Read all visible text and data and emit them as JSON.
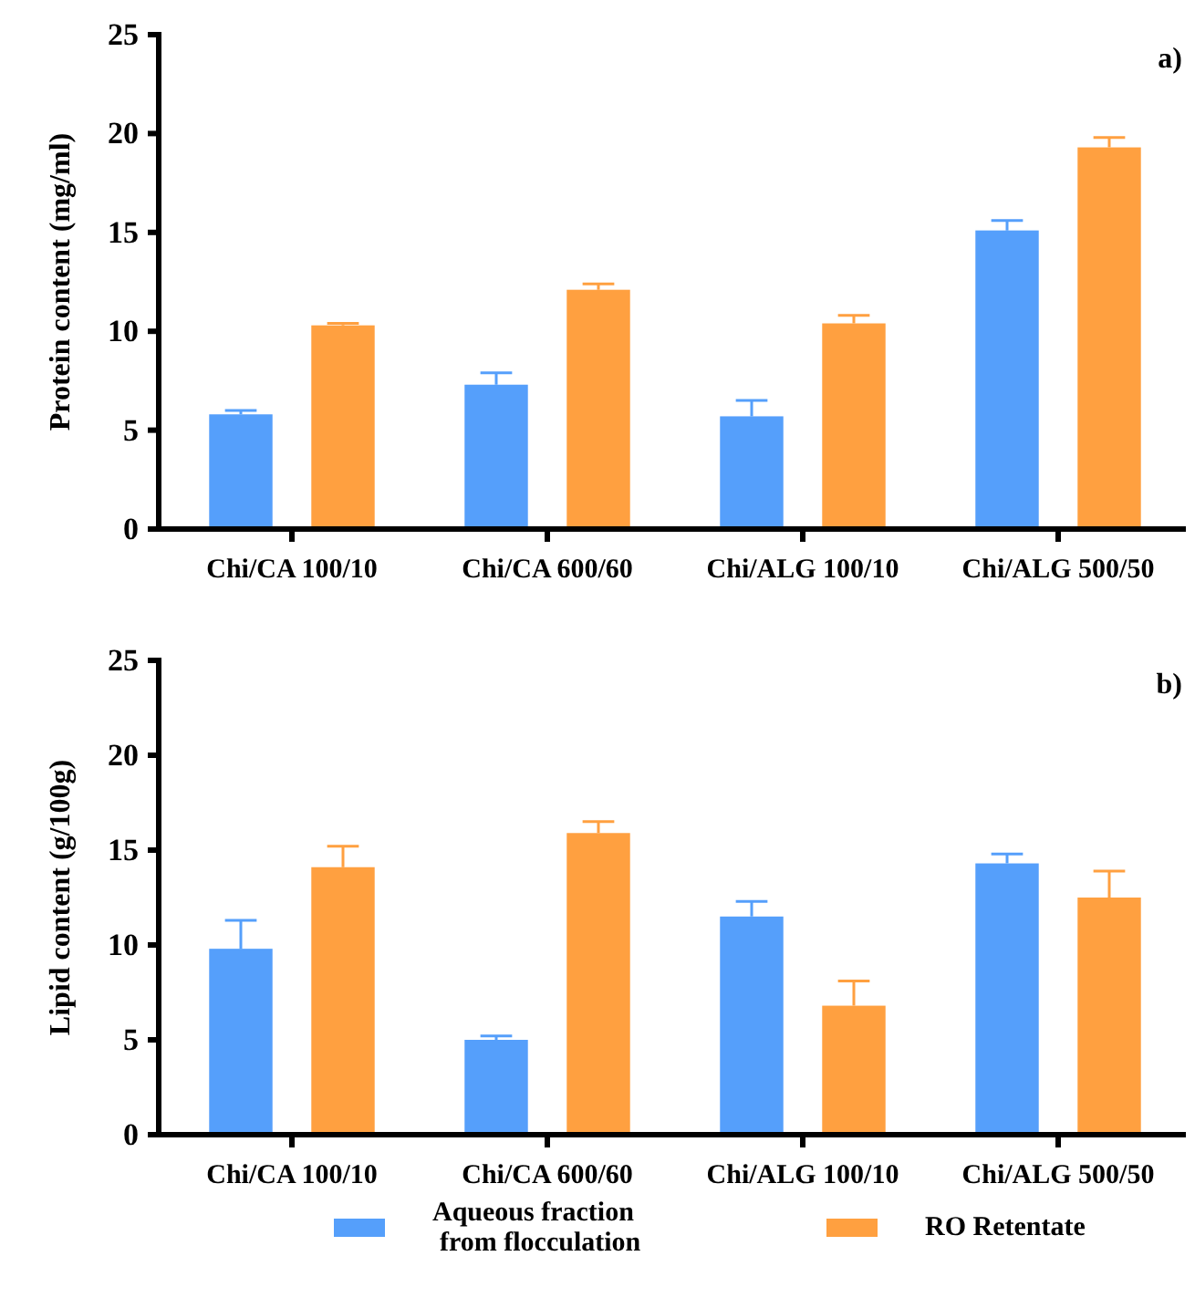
{
  "chart_data": [
    {
      "type": "bar",
      "ylabel": "Protein content (mg/ml)",
      "annotations": [
        "a)"
      ],
      "categories": [
        "Chi/CA 100/10",
        "Chi/CA 600/60",
        "Chi/ALG 100/10",
        "Chi/ALG 500/50"
      ],
      "series": [
        {
          "color": "#559ffb",
          "values": [
            5.8,
            7.3,
            5.7,
            15.1
          ],
          "errors": [
            [
              5.8,
              6.0
            ],
            [
              7.3,
              7.9
            ],
            [
              5.7,
              6.5
            ],
            [
              15.1,
              15.6
            ]
          ]
        },
        {
          "color": "#ffa040",
          "values": [
            10.3,
            12.1,
            10.4,
            19.3
          ],
          "errors": [
            [
              10.3,
              10.4
            ],
            [
              12.1,
              12.4
            ],
            [
              10.4,
              10.8
            ],
            [
              19.3,
              19.8
            ]
          ]
        }
      ],
      "ylim": [
        0,
        25
      ],
      "yticks": [
        0,
        5,
        10,
        15,
        20,
        25
      ],
      "grid": false,
      "legend": false
    },
    {
      "type": "bar",
      "ylabel": "Lipid content (g/100g)",
      "annotations": [
        "b)"
      ],
      "categories": [
        "Chi/CA 100/10",
        "Chi/CA 600/60",
        "Chi/ALG 100/10",
        "Chi/ALG 500/50"
      ],
      "series": [
        {
          "name": "Aqueous fraction from flocculation",
          "color": "#559ffb",
          "values": [
            9.8,
            5.0,
            11.5,
            14.3
          ],
          "errors": [
            [
              9.8,
              11.3
            ],
            [
              5.0,
              5.2
            ],
            [
              11.5,
              12.3
            ],
            [
              14.3,
              14.8
            ]
          ]
        },
        {
          "name": "RO Retentate",
          "color": "#ffa040",
          "values": [
            14.1,
            15.9,
            6.8,
            12.5
          ],
          "errors": [
            [
              14.1,
              15.2
            ],
            [
              15.9,
              16.5
            ],
            [
              6.8,
              8.1
            ],
            [
              12.5,
              13.9
            ]
          ]
        }
      ],
      "ylim": [
        0,
        25
      ],
      "yticks": [
        0,
        5,
        10,
        15,
        20,
        25
      ],
      "grid": false,
      "legend": "bottom"
    }
  ]
}
